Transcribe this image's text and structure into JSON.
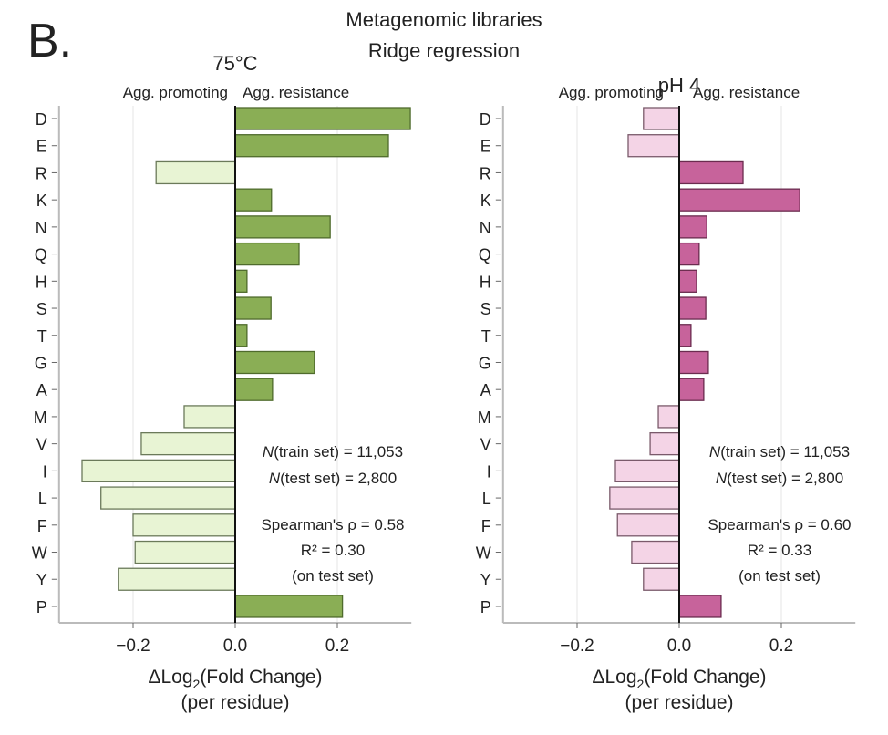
{
  "figure": {
    "panel_letter": "B.",
    "title_line1": "Metagenomic libraries",
    "title_line2": "Ridge regression"
  },
  "chart_data": [
    {
      "type": "bar",
      "orientation": "horizontal",
      "title": "75°C",
      "left_header": "Agg. promoting",
      "right_header": "Agg. resistance",
      "xlabel_prefix": "ΔLog",
      "xlabel_sub": "2",
      "xlabel_suffix": "(Fold Change)",
      "xlabel_line2": "(per residue)",
      "xlim": [
        -0.345,
        0.345
      ],
      "xticks": [
        -0.2,
        0.0,
        0.2
      ],
      "xtick_labels": [
        "−0.2",
        "0.0",
        "0.2"
      ],
      "grid": true,
      "categories": [
        "D",
        "E",
        "R",
        "K",
        "N",
        "Q",
        "H",
        "S",
        "T",
        "G",
        "A",
        "M",
        "V",
        "I",
        "L",
        "F",
        "W",
        "Y",
        "P"
      ],
      "values": [
        0.343,
        0.3,
        -0.155,
        0.071,
        0.186,
        0.125,
        0.023,
        0.07,
        0.023,
        0.155,
        0.073,
        -0.1,
        -0.184,
        -0.3,
        -0.263,
        -0.2,
        -0.196,
        -0.229,
        0.21
      ],
      "colors": {
        "positive": "#8aae55",
        "positive_edge": "#4f6b2c",
        "negative": "#e8f4d4",
        "negative_edge": "#6b7a5a"
      },
      "annotations": {
        "n_symbol": "N",
        "train": "(train set) = 11,053",
        "test": "(test set) = 2,800",
        "spearman": "Spearman's ρ = 0.58",
        "r2": "R² = 0.30",
        "note": "(on test set)"
      }
    },
    {
      "type": "bar",
      "orientation": "horizontal",
      "title": "pH 4",
      "left_header": "Agg. promoting",
      "right_header": "Agg. resistance",
      "xlabel_prefix": "ΔLog",
      "xlabel_sub": "2",
      "xlabel_suffix": "(Fold Change)",
      "xlabel_line2": "(per residue)",
      "xlim": [
        -0.345,
        0.345
      ],
      "xticks": [
        -0.2,
        0.0,
        0.2
      ],
      "xtick_labels": [
        "−0.2",
        "0.0",
        "0.2"
      ],
      "grid": true,
      "categories": [
        "D",
        "E",
        "R",
        "K",
        "N",
        "Q",
        "H",
        "S",
        "T",
        "G",
        "A",
        "M",
        "V",
        "I",
        "L",
        "F",
        "W",
        "Y",
        "P"
      ],
      "values": [
        -0.07,
        -0.1,
        0.125,
        0.236,
        0.054,
        0.039,
        0.034,
        0.052,
        0.023,
        0.057,
        0.048,
        -0.041,
        -0.057,
        -0.125,
        -0.136,
        -0.121,
        -0.093,
        -0.07,
        0.082
      ],
      "colors": {
        "positive": "#c7639b",
        "positive_edge": "#6b2c4f",
        "negative": "#f4d4e6",
        "negative_edge": "#7a5a6b"
      },
      "annotations": {
        "n_symbol": "N",
        "train": "(train set) = 11,053",
        "test": "(test set) = 2,800",
        "spearman": "Spearman's ρ = 0.60",
        "r2": "R² = 0.33",
        "note": "(on test set)"
      }
    }
  ]
}
